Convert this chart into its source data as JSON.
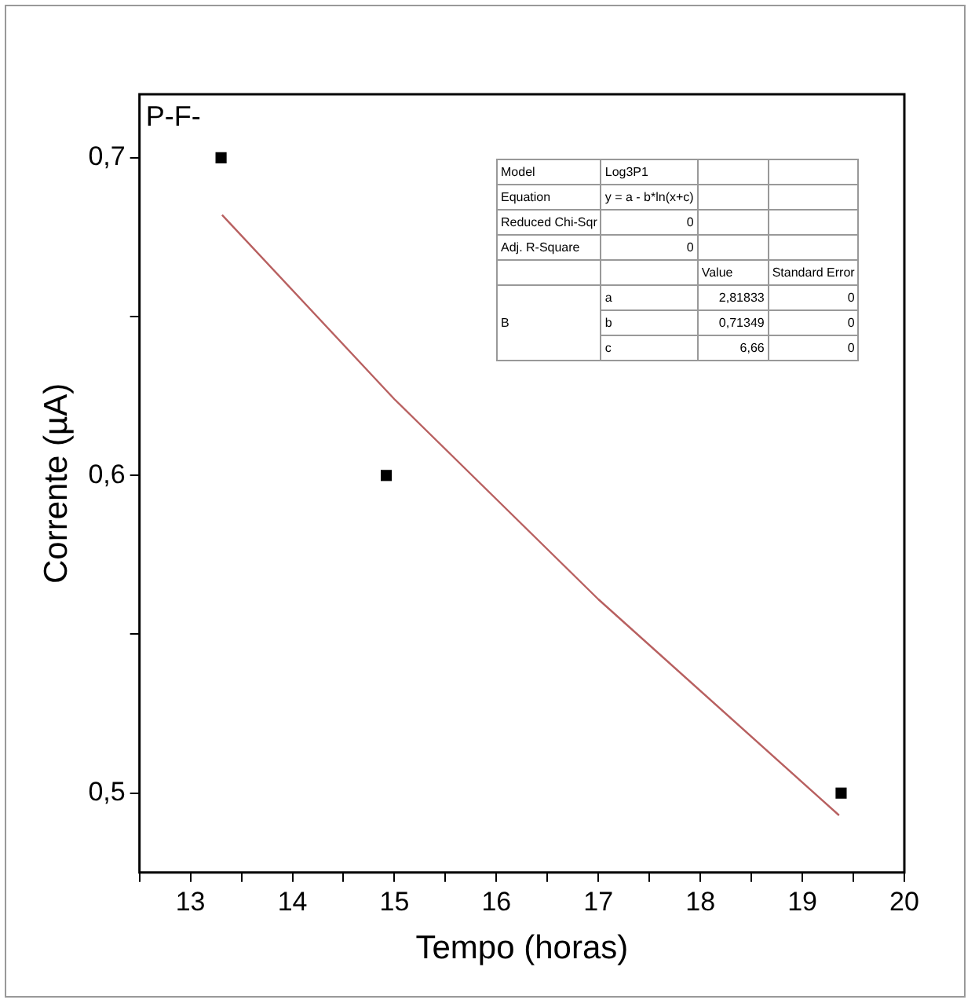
{
  "chart_data": {
    "type": "scatter",
    "title": "P-F-",
    "xlabel": "Tempo (horas)",
    "ylabel": "Corrente (µA)",
    "xlim": [
      12.5,
      20
    ],
    "ylim": [
      0.475,
      0.72
    ],
    "xticks": [
      {
        "value": 12.5,
        "label": null
      },
      13,
      {
        "value": 13.5,
        "label": null
      },
      14,
      {
        "value": 14.5,
        "label": null
      },
      15,
      {
        "value": 15.5,
        "label": null
      },
      16,
      {
        "value": 16.5,
        "label": null
      },
      17,
      {
        "value": 17.5,
        "label": null
      },
      18,
      {
        "value": 18.5,
        "label": null
      },
      19,
      {
        "value": 19.5,
        "label": null
      },
      20
    ],
    "yticks": [
      {
        "value": 0.5,
        "label": "0,5"
      },
      {
        "value": 0.55,
        "label": null
      },
      {
        "value": 0.6,
        "label": "0,6"
      },
      {
        "value": 0.65,
        "label": null
      },
      {
        "value": 0.7,
        "label": "0,7"
      }
    ],
    "grid": false,
    "legend": false,
    "series": [
      {
        "type": "scatter",
        "color": "#000000",
        "marker": "square",
        "x": [
          13.3,
          14.92,
          19.38
        ],
        "values": [
          0.7,
          0.6,
          0.5
        ]
      },
      {
        "type": "line",
        "color": "#b86060",
        "marker": "none",
        "line_style": "solid",
        "x": [
          13.31,
          15,
          17,
          19.36
        ],
        "values": [
          0.682,
          0.624,
          0.561,
          0.493
        ]
      }
    ],
    "annotations": [
      "Model",
      "Log3P1",
      "Equation",
      "y = a - b*ln(x+c)",
      "Reduced Chi-Sqr",
      "0",
      "Adj. R-Square",
      "0",
      "Value",
      "Standard Error",
      "B",
      "a",
      "2,81833",
      "0",
      "b",
      "0,71349",
      "0",
      "c",
      "6,66",
      "0"
    ]
  }
}
